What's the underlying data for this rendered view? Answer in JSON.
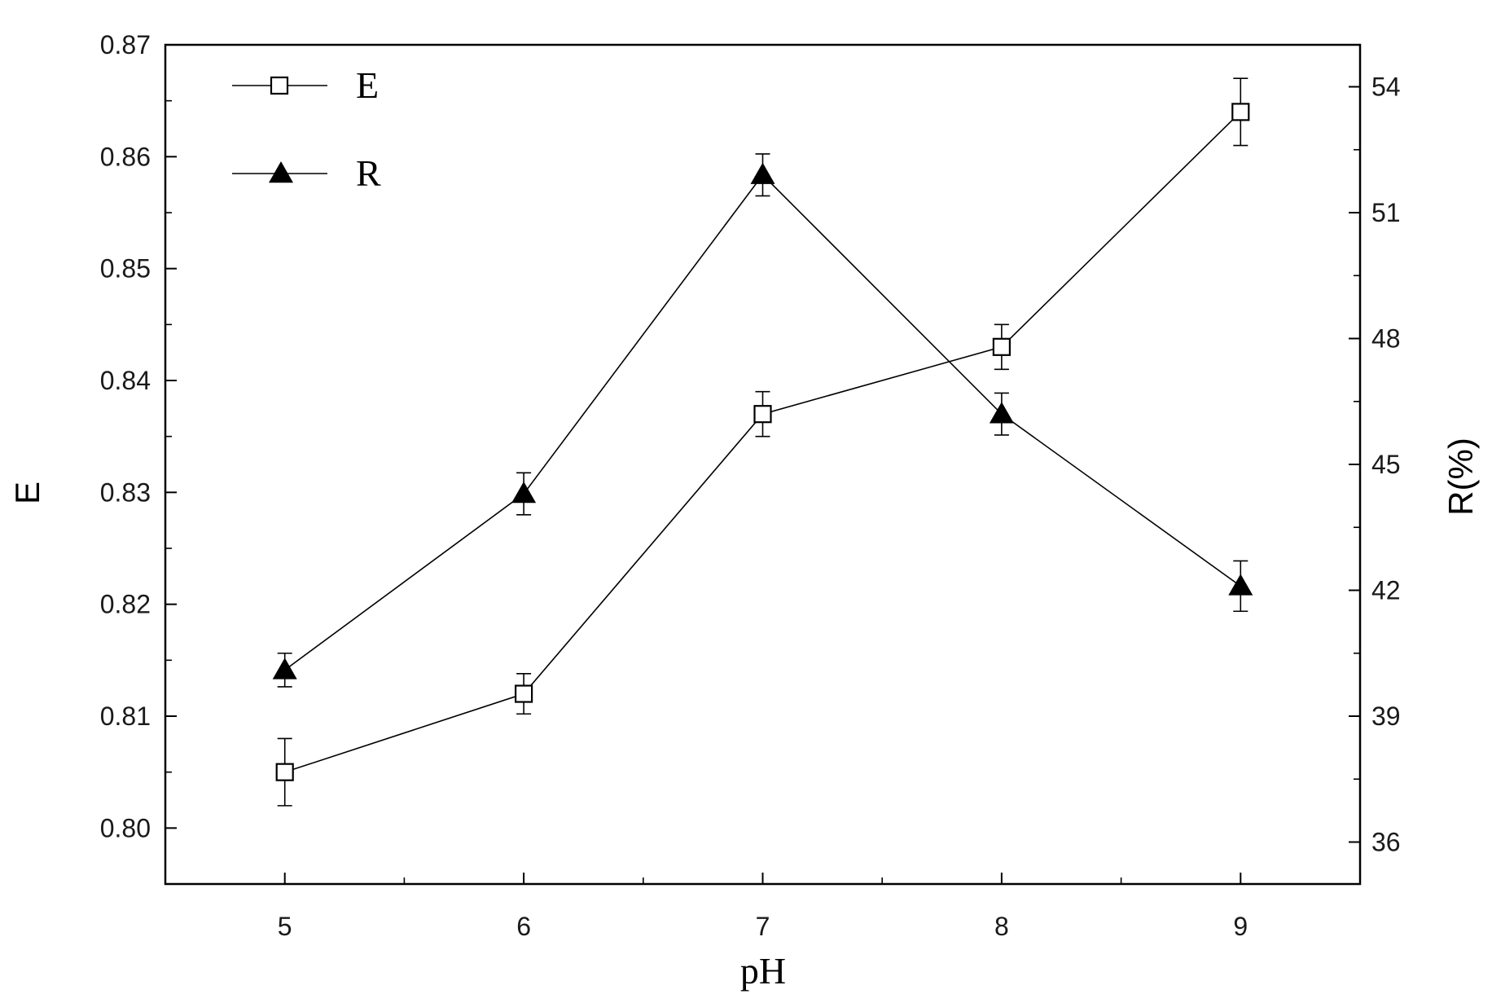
{
  "chart_data": {
    "type": "line",
    "x": [
      5,
      6,
      7,
      8,
      9
    ],
    "xlabel": "pH",
    "xlim": [
      4.5,
      9.5
    ],
    "x_ticks": [
      "5",
      "6",
      "7",
      "8",
      "9"
    ],
    "ylabel_left": "E",
    "ylim_left": [
      0.795,
      0.87
    ],
    "y_ticks_left": [
      "0.80",
      "0.81",
      "0.82",
      "0.83",
      "0.84",
      "0.85",
      "0.86",
      "0.87"
    ],
    "ylabel_right": "R(%)",
    "ylim_right": [
      35,
      55
    ],
    "y_ticks_right": [
      "36",
      "39",
      "42",
      "45",
      "48",
      "51",
      "54"
    ],
    "grid": false,
    "legend_position": "top-left",
    "series": [
      {
        "name": "E",
        "axis": "left",
        "marker": "open-square",
        "color": "#000000",
        "values": [
          0.805,
          0.812,
          0.837,
          0.843,
          0.864
        ],
        "errors": [
          0.003,
          0.0018,
          0.002,
          0.002,
          0.003
        ]
      },
      {
        "name": "R",
        "axis": "right",
        "marker": "filled-triangle",
        "color": "#000000",
        "values": [
          40.1,
          44.3,
          51.9,
          46.2,
          42.1
        ],
        "errors": [
          0.4,
          0.5,
          0.5,
          0.5,
          0.6
        ]
      }
    ]
  }
}
